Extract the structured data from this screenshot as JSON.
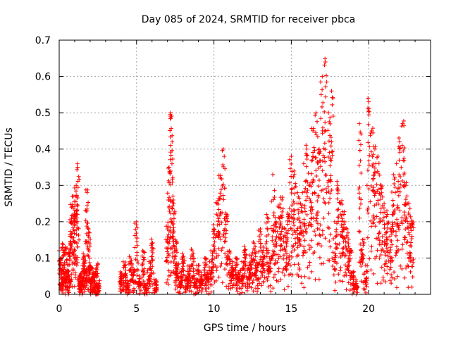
{
  "chart_data": {
    "type": "scatter",
    "title": "Day 085 of 2024, SRMTID for receiver pbca",
    "xlabel": "GPS time / hours",
    "ylabel": "SRMTID / TECUs",
    "xlim": [
      0,
      24
    ],
    "ylim": [
      0,
      0.7
    ],
    "xticks": [
      0,
      5,
      10,
      15,
      20
    ],
    "yticks": [
      0,
      0.1,
      0.2,
      0.3,
      0.4,
      0.5,
      0.6,
      0.7
    ],
    "grid": true,
    "marker": "+",
    "color": "#ff0000",
    "series": [
      {
        "name": "SRMTID",
        "description": "dense cloud of per-satellite SRMTID samples across the day",
        "x": [
          0.0,
          0.1,
          0.2,
          0.3,
          0.4,
          0.5,
          0.6,
          0.7,
          0.8,
          0.9,
          1.0,
          1.1,
          1.2,
          1.3,
          1.4,
          1.5,
          1.6,
          1.7,
          1.8,
          1.9,
          2.0,
          2.1,
          2.2,
          2.3,
          2.4,
          2.5,
          4.0,
          4.2,
          4.4,
          4.6,
          4.8,
          5.0,
          5.2,
          5.4,
          5.6,
          5.8,
          6.0,
          6.2,
          7.0,
          7.1,
          7.2,
          7.3,
          7.4,
          7.5,
          7.6,
          7.8,
          8.0,
          8.2,
          8.4,
          8.6,
          8.8,
          9.0,
          9.2,
          9.4,
          9.6,
          9.8,
          10.0,
          10.2,
          10.4,
          10.6,
          10.8,
          11.0,
          11.2,
          11.4,
          11.6,
          11.8,
          12.0,
          12.2,
          12.4,
          12.6,
          12.8,
          13.0,
          13.2,
          13.4,
          13.6,
          13.8,
          14.0,
          14.2,
          14.4,
          14.6,
          14.8,
          15.0,
          15.2,
          15.4,
          15.6,
          15.8,
          16.0,
          16.2,
          16.4,
          16.6,
          16.8,
          17.0,
          17.2,
          17.4,
          17.6,
          17.8,
          18.0,
          18.2,
          18.4,
          18.6,
          18.8,
          19.0,
          19.2,
          19.4,
          19.6,
          19.8,
          20.0,
          20.2,
          20.4,
          20.6,
          20.8,
          21.0,
          21.2,
          21.4,
          21.6,
          21.8,
          22.0,
          22.2,
          22.4,
          22.6,
          22.8
        ],
        "y": [
          0.12,
          0.1,
          0.14,
          0.08,
          0.13,
          0.06,
          0.11,
          0.16,
          0.24,
          0.27,
          0.22,
          0.3,
          0.35,
          0.05,
          0.03,
          0.08,
          0.1,
          0.06,
          0.28,
          0.18,
          0.07,
          0.04,
          0.06,
          0.02,
          0.08,
          0.03,
          0.05,
          0.08,
          0.03,
          0.1,
          0.06,
          0.2,
          0.04,
          0.12,
          0.02,
          0.09,
          0.14,
          0.03,
          0.18,
          0.35,
          0.5,
          0.42,
          0.25,
          0.15,
          0.08,
          0.06,
          0.1,
          0.04,
          0.07,
          0.12,
          0.03,
          0.08,
          0.05,
          0.1,
          0.06,
          0.12,
          0.18,
          0.25,
          0.32,
          0.4,
          0.22,
          0.12,
          0.08,
          0.1,
          0.06,
          0.09,
          0.12,
          0.07,
          0.1,
          0.14,
          0.08,
          0.18,
          0.12,
          0.22,
          0.1,
          0.33,
          0.2,
          0.24,
          0.26,
          0.18,
          0.22,
          0.38,
          0.33,
          0.28,
          0.25,
          0.36,
          0.4,
          0.3,
          0.45,
          0.5,
          0.4,
          0.6,
          0.64,
          0.5,
          0.56,
          0.2,
          0.3,
          0.25,
          0.22,
          0.18,
          0.12,
          0.06,
          0.03,
          0.47,
          0.15,
          0.08,
          0.53,
          0.45,
          0.4,
          0.38,
          0.3,
          0.25,
          0.22,
          0.18,
          0.33,
          0.36,
          0.42,
          0.47,
          0.3,
          0.25,
          0.2
        ]
      }
    ]
  }
}
